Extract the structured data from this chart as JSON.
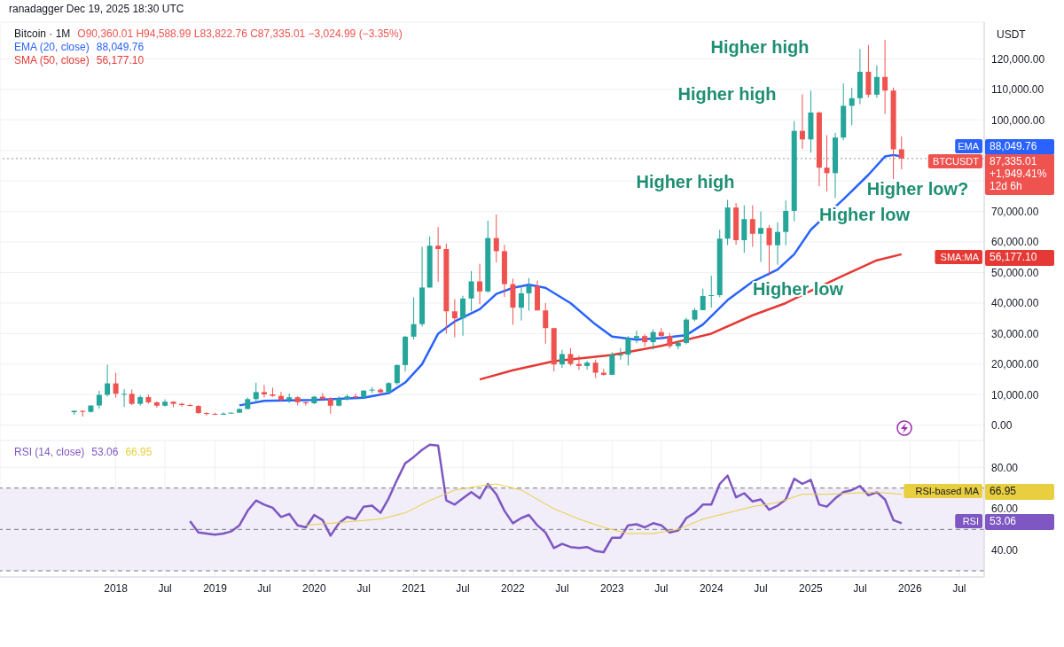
{
  "chart_data": [
    {
      "type": "candlestick",
      "title": "Bitcoin · 1M",
      "ylabel": "USDT",
      "colors": [
        "#26a69a",
        "#ef5350",
        "#26a69a",
        "#26a69a",
        "#26a69a",
        "#ef5350",
        "#26a69a",
        "#ef5350",
        "#26a69a",
        "#ef5350",
        "#ef5350",
        "#26a69a",
        "#ef5350",
        "#ef5350",
        "#ef5350",
        "#ef5350",
        "#ef5350",
        "#ef5350",
        "#26a69a",
        "#26a69a",
        "#26a69a",
        "#26a69a",
        "#26a69a",
        "#ef5350",
        "#ef5350",
        "#ef5350",
        "#26a69a",
        "#ef5350",
        "#ef5350",
        "#26a69a",
        "#ef5350",
        "#ef5350",
        "#26a69a",
        "#26a69a",
        "#ef5350",
        "#26a69a",
        "#26a69a",
        "#ef5350",
        "#26a69a",
        "#26a69a",
        "#26a69a",
        "#26a69a",
        "#26a69a",
        "#26a69a",
        "#ef5350",
        "#ef5350",
        "#ef5350",
        "#26a69a",
        "#26a69a",
        "#ef5350",
        "#26a69a",
        "#ef5350",
        "#ef5350",
        "#ef5350",
        "#26a69a",
        "#26a69a",
        "#ef5350",
        "#ef5350",
        "#ef5350",
        "#26a69a",
        "#ef5350",
        "#ef5350",
        "#26a69a",
        "#ef5350",
        "#ef5350",
        "#26a69a",
        "#26a69a",
        "#26a69a",
        "#26a69a",
        "#ef5350",
        "#26a69a",
        "#ef5350",
        "#ef5350",
        "#26a69a",
        "#26a69a",
        "#26a69a",
        "#26a69a",
        "#26a69a",
        "#26a69a",
        "#26a69a",
        "#ef5350",
        "#26a69a",
        "#ef5350",
        "#26a69a",
        "#ef5350",
        "#26a69a",
        "#26a69a",
        "#26a69a",
        "#ef5350",
        "#26a69a",
        "#ef5350",
        "#ef5350",
        "#26a69a",
        "#26a69a",
        "#26a69a",
        "#26a69a",
        "#ef5350",
        "#26a69a",
        "#ef5350",
        "#ef5350",
        "#ef5350"
      ],
      "x": [
        "2017-08",
        "2017-09",
        "2017-10",
        "2017-11",
        "2017-12",
        "2018-01",
        "2018-02",
        "2018-03",
        "2018-04",
        "2018-05",
        "2018-06",
        "2018-07",
        "2018-08",
        "2018-09",
        "2018-10",
        "2018-11",
        "2018-12",
        "2019-01",
        "2019-02",
        "2019-03",
        "2019-04",
        "2019-05",
        "2019-06",
        "2019-07",
        "2019-08",
        "2019-09",
        "2019-10",
        "2019-11",
        "2019-12",
        "2020-01",
        "2020-02",
        "2020-03",
        "2020-04",
        "2020-05",
        "2020-06",
        "2020-07",
        "2020-08",
        "2020-09",
        "2020-10",
        "2020-11",
        "2020-12",
        "2021-01",
        "2021-02",
        "2021-03",
        "2021-04",
        "2021-05",
        "2021-06",
        "2021-07",
        "2021-08",
        "2021-09",
        "2021-10",
        "2021-11",
        "2021-12",
        "2022-01",
        "2022-02",
        "2022-03",
        "2022-04",
        "2022-05",
        "2022-06",
        "2022-07",
        "2022-08",
        "2022-09",
        "2022-10",
        "2022-11",
        "2022-12",
        "2023-01",
        "2023-02",
        "2023-03",
        "2023-04",
        "2023-05",
        "2023-06",
        "2023-07",
        "2023-08",
        "2023-09",
        "2023-10",
        "2023-11",
        "2023-12",
        "2024-01",
        "2024-02",
        "2024-03",
        "2024-04",
        "2024-05",
        "2024-06",
        "2024-07",
        "2024-08",
        "2024-09",
        "2024-10",
        "2024-11",
        "2024-12",
        "2025-01",
        "2025-02",
        "2025-03",
        "2025-04",
        "2025-05",
        "2025-06",
        "2025-07",
        "2025-08",
        "2025-09",
        "2025-10",
        "2025-11",
        "2025-12"
      ],
      "ohlc": [
        [
          4260,
          4750,
          3400,
          4720
        ],
        [
          4690,
          4940,
          2820,
          4380
        ],
        [
          4380,
          6470,
          4110,
          6460
        ],
        [
          6460,
          11300,
          5380,
          9950
        ],
        [
          9950,
          19800,
          9400,
          13700
        ],
        [
          13700,
          17200,
          9000,
          10300
        ],
        [
          10300,
          11800,
          6000,
          10300
        ],
        [
          10300,
          11700,
          6600,
          7000
        ],
        [
          7000,
          9800,
          6400,
          9200
        ],
        [
          9200,
          10000,
          7000,
          7500
        ],
        [
          7500,
          7800,
          5750,
          6400
        ],
        [
          6400,
          8500,
          6100,
          7700
        ],
        [
          7700,
          7800,
          5900,
          7000
        ],
        [
          7000,
          7400,
          6100,
          6600
        ],
        [
          6600,
          7000,
          6200,
          6300
        ],
        [
          6300,
          6600,
          3650,
          4000
        ],
        [
          4000,
          4300,
          3150,
          3700
        ],
        [
          3700,
          4100,
          3350,
          3450
        ],
        [
          3450,
          4200,
          3400,
          3800
        ],
        [
          3800,
          4100,
          3700,
          4100
        ],
        [
          4100,
          5600,
          4050,
          5300
        ],
        [
          5300,
          9100,
          5300,
          8550
        ],
        [
          8550,
          13970,
          7450,
          10850
        ],
        [
          10850,
          13200,
          9100,
          10100
        ],
        [
          10100,
          12300,
          9300,
          9600
        ],
        [
          9600,
          10900,
          7700,
          8300
        ],
        [
          8300,
          10400,
          7300,
          9150
        ],
        [
          9150,
          9500,
          6500,
          7550
        ],
        [
          7550,
          7750,
          6400,
          7200
        ],
        [
          7200,
          9600,
          6850,
          9350
        ],
        [
          9350,
          10500,
          8450,
          8600
        ],
        [
          8600,
          9200,
          3800,
          6400
        ],
        [
          6400,
          9500,
          6150,
          8600
        ],
        [
          8600,
          10100,
          8100,
          9450
        ],
        [
          9450,
          10400,
          8900,
          9100
        ],
        [
          9100,
          11450,
          8950,
          11350
        ],
        [
          11350,
          12500,
          10500,
          11650
        ],
        [
          11650,
          12100,
          9800,
          10800
        ],
        [
          10800,
          14100,
          10400,
          13800
        ],
        [
          13800,
          19900,
          13200,
          19700
        ],
        [
          19700,
          29300,
          17600,
          29000
        ],
        [
          29000,
          41900,
          28100,
          33100
        ],
        [
          33100,
          58400,
          32300,
          45100
        ],
        [
          45100,
          61800,
          45000,
          58800
        ],
        [
          58800,
          64900,
          47000,
          57700
        ],
        [
          57700,
          59500,
          30000,
          37300
        ],
        [
          37300,
          41300,
          28800,
          35000
        ],
        [
          35000,
          42400,
          29300,
          41500
        ],
        [
          41500,
          50500,
          37300,
          47100
        ],
        [
          47100,
          52900,
          39600,
          43800
        ],
        [
          43800,
          67000,
          43300,
          61300
        ],
        [
          61300,
          69000,
          53300,
          57000
        ],
        [
          57000,
          59100,
          42000,
          46200
        ],
        [
          46200,
          48000,
          32900,
          38500
        ],
        [
          38500,
          45800,
          34300,
          43200
        ],
        [
          43200,
          48200,
          37500,
          45500
        ],
        [
          45500,
          47400,
          37600,
          37600
        ],
        [
          37600,
          40000,
          26700,
          31800
        ],
        [
          31800,
          31950,
          17600,
          19900
        ],
        [
          19900,
          24700,
          18800,
          23300
        ],
        [
          23300,
          25200,
          19500,
          20050
        ],
        [
          20050,
          22800,
          18100,
          19400
        ],
        [
          19400,
          21100,
          18200,
          20500
        ],
        [
          20500,
          21500,
          15500,
          17200
        ],
        [
          17200,
          18400,
          16250,
          16500
        ],
        [
          16500,
          23960,
          16500,
          23100
        ],
        [
          23100,
          25250,
          21350,
          23100
        ],
        [
          23100,
          29200,
          19550,
          28500
        ],
        [
          28500,
          31000,
          26900,
          29200
        ],
        [
          29200,
          29800,
          25800,
          27200
        ],
        [
          27200,
          31400,
          24800,
          30500
        ],
        [
          30500,
          31800,
          28900,
          29200
        ],
        [
          29200,
          30200,
          25200,
          25900
        ],
        [
          25900,
          27500,
          24900,
          26950
        ],
        [
          26950,
          35200,
          26500,
          34600
        ],
        [
          34600,
          38400,
          34100,
          37700
        ],
        [
          37700,
          44700,
          37600,
          42300
        ],
        [
          42300,
          48970,
          38500,
          42600
        ],
        [
          42600,
          64000,
          41900,
          61100
        ],
        [
          61100,
          73800,
          59000,
          71300
        ],
        [
          71300,
          72800,
          59100,
          60600
        ],
        [
          60600,
          71950,
          56500,
          67500
        ],
        [
          67500,
          72000,
          58400,
          62700
        ],
        [
          62700,
          70000,
          53500,
          64600
        ],
        [
          64600,
          65600,
          49000,
          58950
        ],
        [
          58950,
          66500,
          52550,
          63300
        ],
        [
          63300,
          73600,
          58900,
          70200
        ],
        [
          70200,
          99600,
          66800,
          96400
        ],
        [
          96400,
          108350,
          90500,
          93600
        ],
        [
          93600,
          109600,
          89250,
          102400
        ],
        [
          102400,
          102750,
          78250,
          84350
        ],
        [
          84350,
          95000,
          76600,
          82550
        ],
        [
          82550,
          95750,
          74400,
          94200
        ],
        [
          94200,
          111950,
          93350,
          104600
        ],
        [
          104600,
          110500,
          98200,
          107100
        ],
        [
          107100,
          123200,
          105100,
          115750
        ],
        [
          115750,
          124500,
          107350,
          108250
        ],
        [
          108250,
          117900,
          107250,
          114050
        ],
        [
          114050,
          126200,
          102000,
          109600
        ],
        [
          109600,
          110600,
          80600,
          90360.01
        ],
        [
          90360.01,
          94588.99,
          83822.76,
          87335.01
        ]
      ],
      "series": [
        {
          "type": "line",
          "name": "EMA (20, close)",
          "color": "#2962ff",
          "x": [
            "2019-04",
            "2019-07",
            "2020-01",
            "2020-07",
            "2020-10",
            "2020-12",
            "2021-02",
            "2021-04",
            "2021-06",
            "2021-09",
            "2021-11",
            "2022-01",
            "2022-03",
            "2022-05",
            "2022-08",
            "2022-11",
            "2023-01",
            "2023-04",
            "2023-07",
            "2023-10",
            "2023-12",
            "2024-03",
            "2024-06",
            "2024-09",
            "2024-11",
            "2025-01",
            "2025-03",
            "2025-05",
            "2025-08",
            "2025-10",
            "2025-11",
            "2025-12"
          ],
          "values": [
            6500,
            8000,
            8300,
            9000,
            10500,
            14000,
            20000,
            30000,
            34000,
            38000,
            43000,
            45000,
            46000,
            45000,
            40000,
            33000,
            29000,
            28000,
            28500,
            29500,
            33000,
            41000,
            47000,
            51000,
            56000,
            64000,
            69000,
            74000,
            82000,
            88000,
            88500,
            88000
          ]
        },
        {
          "type": "line",
          "name": "SMA (50, close)",
          "color": "#e53935",
          "x": [
            "2021-09",
            "2022-01",
            "2022-06",
            "2023-01",
            "2023-07",
            "2024-01",
            "2024-06",
            "2024-10",
            "2025-01",
            "2025-05",
            "2025-09",
            "2025-12"
          ],
          "values": [
            15000,
            18000,
            21000,
            23000,
            26000,
            30000,
            36000,
            40000,
            44000,
            49000,
            54000,
            56000
          ]
        }
      ],
      "xlim": [
        "2016-11",
        "2026-10"
      ],
      "xticks": [
        {
          "value": "2018-01",
          "label": null
        },
        {
          "value": "2018-07",
          "label": null
        },
        {
          "value": "2019-01",
          "label": null
        },
        {
          "value": "2019-07",
          "label": null
        },
        {
          "value": "2020-01",
          "label": null
        },
        {
          "value": "2020-07",
          "label": null
        },
        {
          "value": "2021-01",
          "label": null
        },
        {
          "value": "2021-07",
          "label": null
        },
        {
          "value": "2022-01",
          "label": null
        },
        {
          "value": "2022-07",
          "label": null
        },
        {
          "value": "2023-01",
          "label": null
        },
        {
          "value": "2023-07",
          "label": null
        },
        {
          "value": "2024-01",
          "label": null
        },
        {
          "value": "2024-07",
          "label": null
        },
        {
          "value": "2025-01",
          "label": null
        },
        {
          "value": "2025-07",
          "label": null
        },
        {
          "value": "2026-01",
          "label": null
        },
        {
          "value": "2026-07",
          "label": null
        }
      ],
      "ylim": [
        -5000,
        132000
      ],
      "yticks": [
        {
          "value": 0,
          "label": "0.00"
        },
        {
          "value": 10000,
          "label": "10,000.00"
        },
        {
          "value": 20000,
          "label": "20,000.00"
        },
        {
          "value": 30000,
          "label": "30,000.00"
        },
        {
          "value": 40000,
          "label": "40,000.00"
        },
        {
          "value": 50000,
          "label": "50,000.00"
        },
        {
          "value": 60000,
          "label": "60,000.00"
        },
        {
          "value": 70000,
          "label": "70,000.00"
        },
        {
          "value": 80000,
          "label": null
        },
        {
          "value": 90000,
          "label": null
        },
        {
          "value": 100000,
          "label": "100,000.00"
        },
        {
          "value": 110000,
          "label": "110,000.00"
        },
        {
          "value": 120000,
          "label": "120,000.00"
        }
      ],
      "tick_labels": "y",
      "grid": true,
      "legend": "top left",
      "ref_lines": [
        {
          "axis": "y",
          "value": 87335.01,
          "color": "#9598a1",
          "line_style": "dotted"
        }
      ],
      "annotations": [
        "ranadagger Dec 19, 2025 18:30 UTC",
        "O90,360.01 H94,588.99 L83,822.76 C87,335.01 −3,024.99 (−3.35%)",
        "Higher high",
        "Higher high",
        "Higher high",
        "Higher low",
        "Higher low",
        "Higher low?",
        "EMA 88,049.76",
        "BTCUSDT 87,335.01 +1,949.41% 12d 6h",
        "SMA:MA 56,177.10",
        "88,049.76",
        "56,177.10"
      ]
    },
    {
      "type": "line",
      "legend": "top left",
      "grid": true,
      "x": [
        "2018-10",
        "2018-11",
        "2018-12",
        "2019-01",
        "2019-02",
        "2019-03",
        "2019-04",
        "2019-05",
        "2019-06",
        "2019-07",
        "2019-08",
        "2019-09",
        "2019-10",
        "2019-11",
        "2019-12",
        "2020-01",
        "2020-02",
        "2020-03",
        "2020-04",
        "2020-05",
        "2020-06",
        "2020-07",
        "2020-08",
        "2020-09",
        "2020-10",
        "2020-11",
        "2020-12",
        "2021-01",
        "2021-02",
        "2021-03",
        "2021-04",
        "2021-05",
        "2021-06",
        "2021-07",
        "2021-08",
        "2021-09",
        "2021-10",
        "2021-11",
        "2021-12",
        "2022-01",
        "2022-02",
        "2022-03",
        "2022-04",
        "2022-05",
        "2022-06",
        "2022-07",
        "2022-08",
        "2022-09",
        "2022-10",
        "2022-11",
        "2022-12",
        "2023-01",
        "2023-02",
        "2023-03",
        "2023-04",
        "2023-05",
        "2023-06",
        "2023-07",
        "2023-08",
        "2023-09",
        "2023-10",
        "2023-11",
        "2023-12",
        "2024-01",
        "2024-02",
        "2024-03",
        "2024-04",
        "2024-05",
        "2024-06",
        "2024-07",
        "2024-08",
        "2024-09",
        "2024-10",
        "2024-11",
        "2024-12",
        "2025-01",
        "2025-02",
        "2025-03",
        "2025-04",
        "2025-05",
        "2025-06",
        "2025-07",
        "2025-08",
        "2025-09",
        "2025-10",
        "2025-11",
        "2025-12"
      ],
      "series": [
        {
          "name": "RSI (14, close)",
          "color": "#7e57c2",
          "values": [
            54,
            48.5,
            48,
            47.5,
            48,
            49,
            52,
            59,
            64,
            62,
            60.5,
            56,
            57.5,
            52,
            51,
            57,
            54.5,
            47,
            53,
            56,
            55,
            61,
            61.5,
            58,
            65,
            74,
            82,
            85,
            88.5,
            91,
            90.5,
            64,
            62,
            65,
            68,
            65,
            72,
            67,
            59,
            53,
            55.5,
            57,
            52,
            48.5,
            41,
            43,
            41.5,
            41,
            41.5,
            39.5,
            39,
            46,
            46,
            52,
            52.5,
            51,
            53,
            52,
            48.5,
            49.5,
            55.5,
            58,
            62,
            62,
            72,
            76,
            65.5,
            67.5,
            63.5,
            64.5,
            59.5,
            61.5,
            64.5,
            74.5,
            72,
            74,
            62,
            61,
            65,
            68,
            69,
            71,
            66.5,
            68,
            64.5,
            54.5,
            53
          ]
        },
        {
          "color": "#e9cf3f",
          "x": [
            "2019-12",
            "2020-06",
            "2020-09",
            "2020-12",
            "2021-03",
            "2021-06",
            "2021-09",
            "2021-11",
            "2022-02",
            "2022-06",
            "2022-09",
            "2022-12",
            "2023-03",
            "2023-06",
            "2023-09",
            "2023-12",
            "2024-03",
            "2024-06",
            "2024-09",
            "2024-12",
            "2025-03",
            "2025-06",
            "2025-09",
            "2025-12"
          ],
          "values": [
            52,
            54,
            55,
            58,
            64,
            69,
            71,
            72,
            69,
            60,
            55,
            51,
            48,
            48,
            50,
            55,
            58,
            61,
            63,
            67,
            67,
            67.5,
            68,
            67
          ]
        }
      ],
      "xlim": [
        "2016-11",
        "2026-10"
      ],
      "xticks": [
        {
          "value": "2018-01",
          "label": "2018"
        },
        {
          "value": "2018-07",
          "label": "Jul"
        },
        {
          "value": "2019-01",
          "label": "2019"
        },
        {
          "value": "2019-07",
          "label": "Jul"
        },
        {
          "value": "2020-01",
          "label": "2020"
        },
        {
          "value": "2020-07",
          "label": "Jul"
        },
        {
          "value": "2021-01",
          "label": "2021"
        },
        {
          "value": "2021-07",
          "label": "Jul"
        },
        {
          "value": "2022-01",
          "label": "2022"
        },
        {
          "value": "2022-07",
          "label": "Jul"
        },
        {
          "value": "2023-01",
          "label": "2023"
        },
        {
          "value": "2023-07",
          "label": "Jul"
        },
        {
          "value": "2024-01",
          "label": "2024"
        },
        {
          "value": "2024-07",
          "label": "Jul"
        },
        {
          "value": "2025-01",
          "label": "2025"
        },
        {
          "value": "2025-07",
          "label": "Jul"
        },
        {
          "value": "2026-01",
          "label": "2026"
        },
        {
          "value": "2026-07",
          "label": "Jul"
        }
      ],
      "ylim": [
        27,
        93
      ],
      "yticks": [
        {
          "value": 40,
          "label": "40.00"
        },
        {
          "value": 60,
          "label": "60.00"
        },
        {
          "value": 80,
          "label": "80.00"
        }
      ],
      "bands": [
        {
          "axis": "y",
          "from": 30,
          "to": 70,
          "color": "#f1edf9"
        }
      ],
      "ref_lines": [
        {
          "axis": "y",
          "value": 70,
          "color": "#787b86",
          "line_style": "dashed"
        },
        {
          "axis": "y",
          "value": 50,
          "color": "#787b86",
          "line_style": "dashed"
        },
        {
          "axis": "y",
          "value": 30,
          "color": "#787b86",
          "line_style": "dashed"
        }
      ],
      "annotations": [
        "RSI-based MA 66.95",
        "RSI 53.06",
        "53.06",
        "66.95"
      ]
    }
  ]
}
